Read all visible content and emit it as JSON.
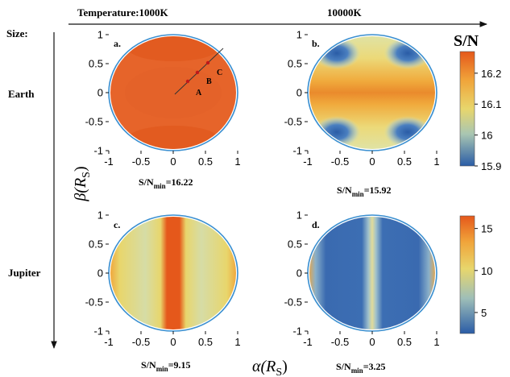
{
  "header": {
    "temperature_label": "Temperature:1000K",
    "temperature_label_2": "10000K",
    "size_label": "Size:"
  },
  "rows": {
    "earth": "Earth",
    "jupiter": "Jupiter"
  },
  "axes": {
    "xlabel": "α(R",
    "xlabel_sub": "S",
    "xlabel_close": ")",
    "ylabel": "β(R",
    "ylabel_sub": "S",
    "ylabel_close": ")"
  },
  "colorbars": {
    "top_title": "S/N",
    "top_ticks": [
      "16.2",
      "16.1",
      "16",
      "15.9"
    ],
    "top_range": [
      15.9,
      16.27
    ],
    "bottom_ticks": [
      "15",
      "10",
      "5"
    ],
    "bottom_range": [
      2.5,
      16.5
    ]
  },
  "colors": {
    "high": "#e5581b",
    "mid": "#e8d66c",
    "low": "#2f63ac",
    "circle": "#3a8fd0"
  },
  "chart_data": [
    {
      "type": "heatmap",
      "panel_label": "a.",
      "annotation": "S/N",
      "annotation_sub": "min",
      "annotation_val": "=16.22",
      "points": [
        "A",
        "B",
        "C"
      ],
      "xlim": [
        -1,
        1
      ],
      "ylim": [
        -1,
        1
      ],
      "xticks": [
        "-1",
        "-0.5",
        "0",
        "0.5",
        "1"
      ],
      "yticks": [
        "1",
        "0.5",
        "0",
        "-0.5",
        "-1"
      ],
      "min_value": 16.22
    },
    {
      "type": "heatmap",
      "panel_label": "b.",
      "annotation": "S/N",
      "annotation_sub": "min",
      "annotation_val": "=15.92",
      "xlim": [
        -1,
        1
      ],
      "ylim": [
        -1,
        1
      ],
      "xticks": [
        "-1",
        "-0.5",
        "0",
        "0.5",
        "1"
      ],
      "yticks": [
        "1",
        "0.5",
        "0",
        "-0.5",
        "-1"
      ],
      "min_value": 15.92
    },
    {
      "type": "heatmap",
      "panel_label": "c.",
      "annotation": "S/N",
      "annotation_sub": "min",
      "annotation_val": "=9.15",
      "xlim": [
        -1,
        1
      ],
      "ylim": [
        -1,
        1
      ],
      "xticks": [
        "-1",
        "-0.5",
        "0",
        "0.5",
        "1"
      ],
      "yticks": [
        "1",
        "0.5",
        "0",
        "-0.5",
        "-1"
      ],
      "min_value": 9.15
    },
    {
      "type": "heatmap",
      "panel_label": "d.",
      "annotation": "S/N",
      "annotation_sub": "min",
      "annotation_val": "=3.25",
      "xlim": [
        -1,
        1
      ],
      "ylim": [
        -1,
        1
      ],
      "xticks": [
        "-1",
        "-0.5",
        "0",
        "0.5",
        "1"
      ],
      "yticks": [
        "1",
        "0.5",
        "0",
        "-0.5",
        "-1"
      ],
      "min_value": 3.25
    }
  ]
}
